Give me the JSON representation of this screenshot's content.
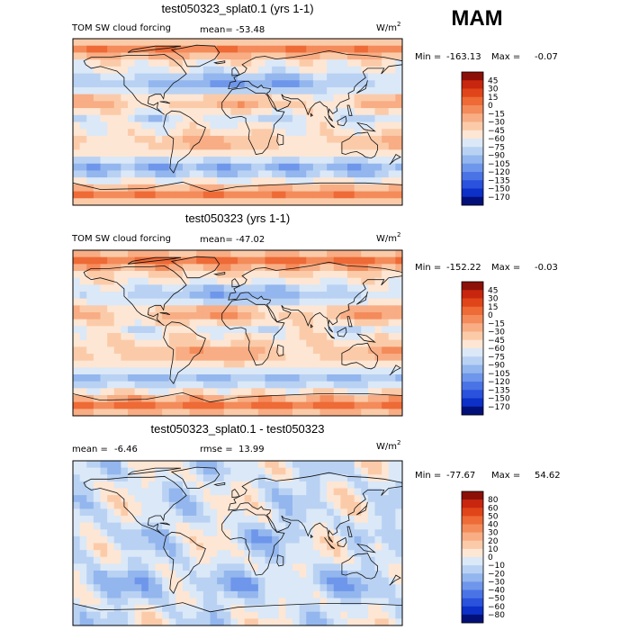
{
  "page": {
    "season": "MAM",
    "units_base": "W/m",
    "units_exp": "2"
  },
  "chart_data": [
    {
      "type": "heatmap",
      "title": "test050323_splat0.1 (yrs 1-1)",
      "variable_label": "TOM SW cloud forcing",
      "stats_label": "mean=",
      "stats_value": "-53.48",
      "min_label": "Min =",
      "min_value": "-163.13",
      "max_label": "Max =",
      "max_value": "-0.07",
      "colorbar_levels": [
        "45",
        "30",
        "15",
        "0",
        "−15",
        "−30",
        "−45",
        "−60",
        "−75",
        "−90",
        "−105",
        "−120",
        "−135",
        "−150",
        "−170"
      ],
      "colorbar_colors": [
        "#8c1008",
        "#c8260e",
        "#e04519",
        "#ee6a36",
        "#f48b5a",
        "#f8ad84",
        "#fbcba9",
        "#fde6d4",
        "#dbe8f7",
        "#b9d2f3",
        "#93b6ee",
        "#6e96ea",
        "#4a74e6",
        "#2a52dc",
        "#0c30c8",
        "#03107a"
      ],
      "map_style": "model",
      "map_mean": -53.48,
      "map_contrast": 1
    },
    {
      "type": "heatmap",
      "title": "test050323 (yrs 1-1)",
      "variable_label": "TOM SW cloud forcing",
      "stats_label": "mean=",
      "stats_value": "-47.02",
      "min_label": "Min =",
      "min_value": "-152.22",
      "max_label": "Max =",
      "max_value": "-0.03",
      "colorbar_levels": [
        "45",
        "30",
        "15",
        "0",
        "−15",
        "−30",
        "−45",
        "−60",
        "−75",
        "−90",
        "−105",
        "−120",
        "−135",
        "−150",
        "−170"
      ],
      "colorbar_colors": [
        "#8c1008",
        "#c8260e",
        "#e04519",
        "#ee6a36",
        "#f48b5a",
        "#f8ad84",
        "#fbcba9",
        "#fde6d4",
        "#dbe8f7",
        "#b9d2f3",
        "#93b6ee",
        "#6e96ea",
        "#4a74e6",
        "#2a52dc",
        "#0c30c8",
        "#03107a"
      ],
      "map_style": "model",
      "map_mean": -47.02,
      "map_contrast": 1
    },
    {
      "type": "heatmap",
      "title": "test050323_splat0.1 - test050323",
      "variable_label": "mean =",
      "stats_label": "rmse =",
      "mean_value": "-6.46",
      "stats_value": "13.99",
      "min_label": "Min =",
      "min_value": "-77.67",
      "max_label": "Max =",
      "max_value": "54.62",
      "colorbar_levels": [
        "80",
        "60",
        "50",
        "40",
        "30",
        "20",
        "10",
        "0",
        "−10",
        "−20",
        "−30",
        "−40",
        "−50",
        "−60",
        "−80"
      ],
      "colorbar_colors": [
        "#8c1008",
        "#c8260e",
        "#e04519",
        "#ee6a36",
        "#f48b5a",
        "#f8ad84",
        "#fbcba9",
        "#fde6d4",
        "#dbe8f7",
        "#b9d2f3",
        "#93b6ee",
        "#6e96ea",
        "#4a74e6",
        "#2a52dc",
        "#0c30c8",
        "#03107a"
      ],
      "map_style": "difference",
      "map_mean": -6.46,
      "map_contrast": 1
    }
  ]
}
